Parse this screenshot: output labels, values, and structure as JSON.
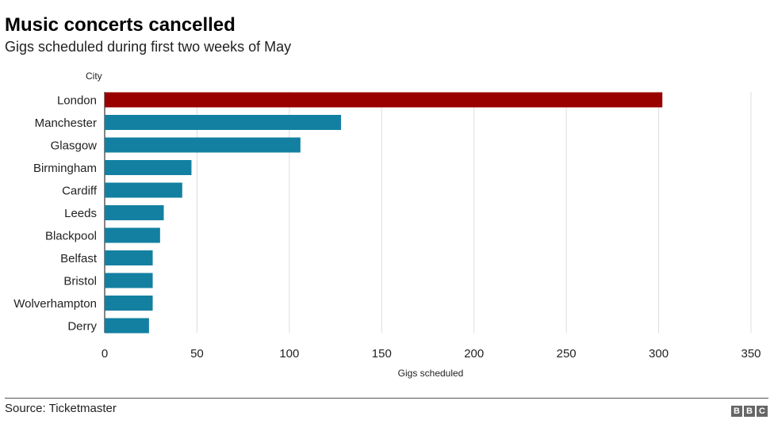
{
  "header": {
    "title": "Music concerts cancelled",
    "subtitle": "Gigs scheduled during first two weeks of May"
  },
  "footer": {
    "source": "Source: Ticketmaster",
    "logo_letters": [
      "B",
      "B",
      "C"
    ]
  },
  "colors": {
    "highlight": "#990000",
    "bar": "#1380a1",
    "grid": "#dddddd"
  },
  "chart_data": {
    "type": "bar",
    "orientation": "horizontal",
    "title": "Music concerts cancelled",
    "subtitle": "Gigs scheduled during first two weeks of May",
    "ylabel": "City",
    "xlabel": "Gigs scheduled",
    "categories": [
      "London",
      "Manchester",
      "Glasgow",
      "Birmingham",
      "Cardiff",
      "Leeds",
      "Blackpool",
      "Belfast",
      "Bristol",
      "Wolverhampton",
      "Derry"
    ],
    "values": [
      302,
      128,
      106,
      47,
      42,
      32,
      30,
      26,
      26,
      26,
      24
    ],
    "highlight": "London",
    "xlim": [
      0,
      350
    ],
    "xticks": [
      0,
      50,
      100,
      150,
      200,
      250,
      300,
      350
    ],
    "grid": "vertical"
  }
}
